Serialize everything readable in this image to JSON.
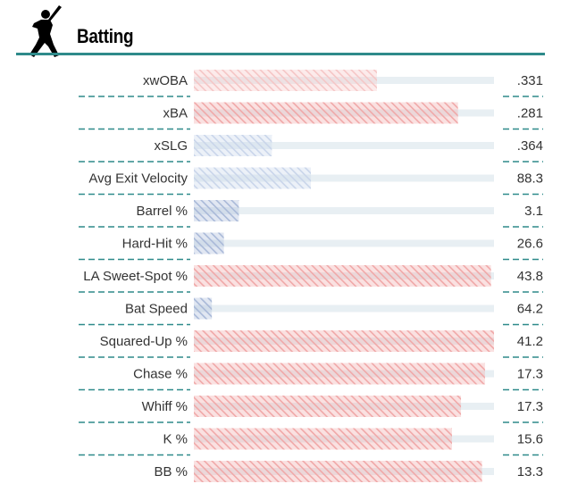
{
  "header": {
    "title": "Batting",
    "icon": "batter-silhouette-icon"
  },
  "chart_data": {
    "type": "bar",
    "title": "Batting",
    "categories": [
      "xwOBA",
      "xBA",
      "xSLG",
      "Avg Exit Velocity",
      "Barrel %",
      "Hard-Hit %",
      "LA Sweet-Spot %",
      "Bat Speed",
      "Squared-Up %",
      "Chase %",
      "Whiff %",
      "K %",
      "BB %"
    ],
    "values": [
      ".331",
      ".281",
      ".364",
      "88.3",
      "3.1",
      "26.6",
      "43.8",
      "64.2",
      "41.2",
      "17.3",
      "17.3",
      "15.6",
      "13.3"
    ],
    "percentiles": [
      61,
      88,
      26,
      39,
      15,
      10,
      99,
      6,
      100,
      97,
      89,
      86,
      96
    ],
    "xlim": [
      0,
      100
    ],
    "colors": {
      "high_strong": "#f0a8a8",
      "high_light": "#f5c6c6",
      "neutral": "#d9dde3",
      "low_strong": "#a9b9d8",
      "low_light": "#c9d5ea",
      "track": "#e8eff3",
      "divider": "#2e8a8a",
      "title_rule": "#2e8a8a"
    }
  }
}
